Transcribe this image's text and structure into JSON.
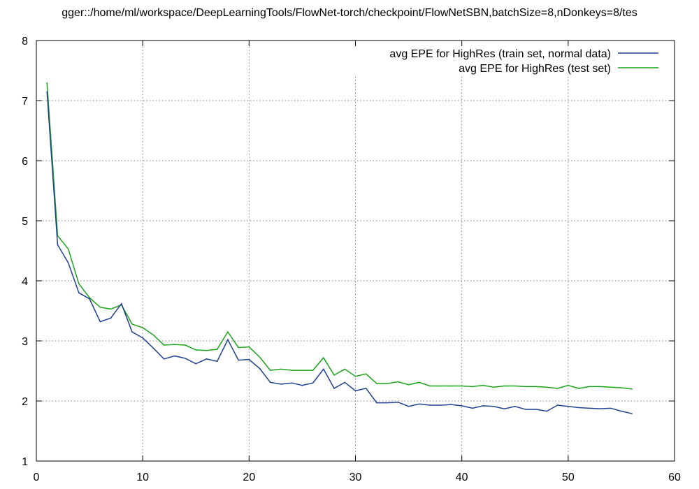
{
  "chart_data": {
    "type": "line",
    "title": "gger::/home/ml/workspace/DeepLearningTools/FlowNet-torch/checkpoint/FlowNetSBN,batchSize=8,nDonkeys=8/tes",
    "xlabel": "",
    "ylabel": "",
    "xlim": [
      0,
      60
    ],
    "ylim": [
      1,
      8
    ],
    "xticks": [
      0,
      10,
      20,
      30,
      40,
      50,
      60
    ],
    "yticks": [
      1,
      2,
      3,
      4,
      5,
      6,
      7,
      8
    ],
    "grid": true,
    "legend_position": "top-right",
    "series": [
      {
        "name": "avg EPE for HighRes (train set, normal data)",
        "color": "#1f3f8f",
        "x": [
          1,
          2,
          3,
          4,
          5,
          6,
          7,
          8,
          9,
          10,
          11,
          12,
          13,
          14,
          15,
          16,
          17,
          18,
          19,
          20,
          21,
          22,
          23,
          24,
          25,
          26,
          27,
          28,
          29,
          30,
          31,
          32,
          33,
          34,
          35,
          36,
          37,
          38,
          39,
          40,
          41,
          42,
          43,
          44,
          45,
          46,
          47,
          48,
          49,
          50,
          51,
          52,
          53,
          54,
          55,
          56
        ],
        "values": [
          7.15,
          4.6,
          4.3,
          3.8,
          3.7,
          3.32,
          3.38,
          3.62,
          3.15,
          3.05,
          2.88,
          2.7,
          2.75,
          2.71,
          2.62,
          2.7,
          2.66,
          3.02,
          2.68,
          2.69,
          2.54,
          2.31,
          2.28,
          2.3,
          2.26,
          2.3,
          2.53,
          2.21,
          2.31,
          2.17,
          2.21,
          1.97,
          1.97,
          1.98,
          1.91,
          1.95,
          1.93,
          1.93,
          1.94,
          1.92,
          1.88,
          1.92,
          1.91,
          1.87,
          1.91,
          1.86,
          1.86,
          1.83,
          1.93,
          1.91,
          1.89,
          1.88,
          1.87,
          1.88,
          1.83,
          1.79
        ]
      },
      {
        "name": "avg EPE for HighRes (test set)",
        "color": "#1aa31a",
        "x": [
          1,
          2,
          3,
          4,
          5,
          6,
          7,
          8,
          9,
          10,
          11,
          12,
          13,
          14,
          15,
          16,
          17,
          18,
          19,
          20,
          21,
          22,
          23,
          24,
          25,
          26,
          27,
          28,
          29,
          30,
          31,
          32,
          33,
          34,
          35,
          36,
          37,
          38,
          39,
          40,
          41,
          42,
          43,
          44,
          45,
          46,
          47,
          48,
          49,
          50,
          51,
          52,
          53,
          54,
          55,
          56
        ],
        "values": [
          7.3,
          4.75,
          4.53,
          3.95,
          3.72,
          3.56,
          3.53,
          3.6,
          3.28,
          3.22,
          3.1,
          2.93,
          2.94,
          2.93,
          2.85,
          2.84,
          2.86,
          3.15,
          2.89,
          2.9,
          2.73,
          2.51,
          2.53,
          2.51,
          2.51,
          2.51,
          2.72,
          2.43,
          2.53,
          2.41,
          2.45,
          2.29,
          2.29,
          2.32,
          2.27,
          2.31,
          2.25,
          2.25,
          2.25,
          2.25,
          2.24,
          2.26,
          2.23,
          2.25,
          2.25,
          2.24,
          2.24,
          2.23,
          2.21,
          2.26,
          2.21,
          2.24,
          2.24,
          2.23,
          2.22,
          2.2
        ]
      }
    ]
  }
}
